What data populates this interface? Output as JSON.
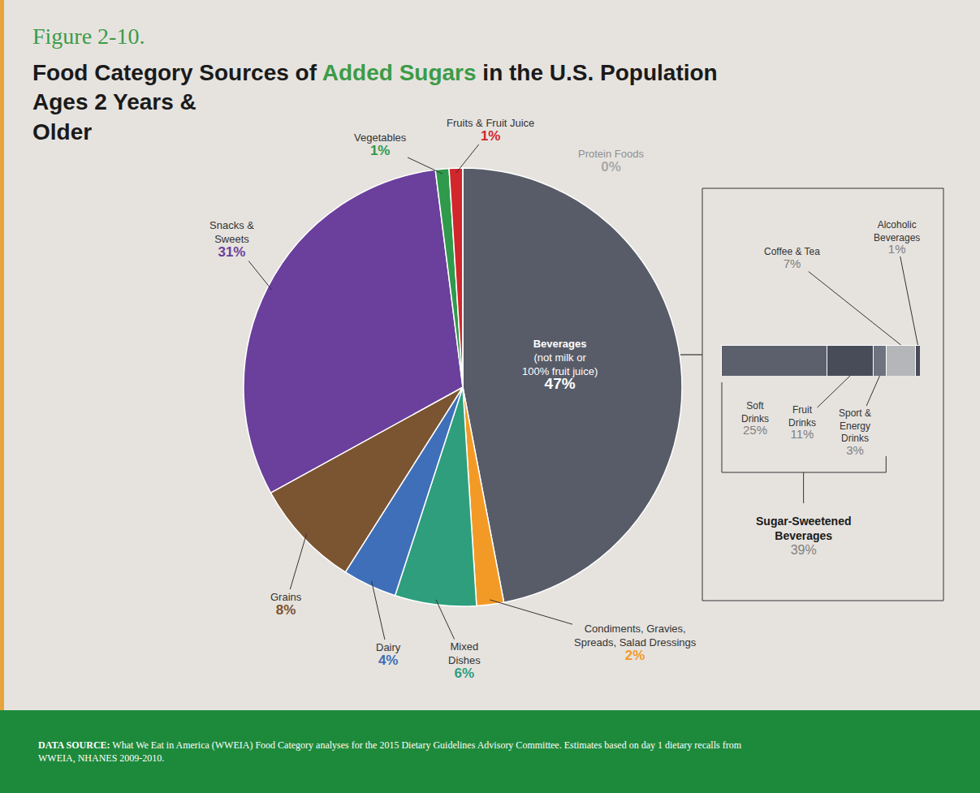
{
  "chart_data": [
    {
      "type": "pie",
      "figure_label": "Figure 2-10.",
      "title": "Food Category Sources of Added Sugars in the U.S. Population Ages 2 Years & Older",
      "title_highlight": "Added Sugars",
      "categories": [
        "Beverages (not milk or 100% fruit juice)",
        "Condiments, Gravies, Spreads, Salad Dressings",
        "Mixed Dishes",
        "Dairy",
        "Grains",
        "Snacks & Sweets",
        "Vegetables",
        "Fruits & Fruit Juice",
        "Protein Foods"
      ],
      "values": [
        47,
        2,
        6,
        4,
        8,
        31,
        1,
        1,
        0
      ],
      "value_labels": [
        "47%",
        "2%",
        "6%",
        "4%",
        "8%",
        "31%",
        "1%",
        "1%",
        "0%"
      ],
      "colors": [
        "#575c68",
        "#f39a26",
        "#2e9e7c",
        "#3f6fb8",
        "#7b5431",
        "#6b3f9c",
        "#2f9a4c",
        "#d1262c",
        "#a9a9a9"
      ],
      "source_label": "DATA SOURCE:",
      "source": "What We Eat in America (WWEIA) Food Category analyses for the 2015 Dietary Guidelines Advisory Committee. Estimates based on day 1 dietary recalls from WWEIA, NHANES 2009-2010."
    },
    {
      "type": "bar",
      "orientation": "horizontal",
      "stacked": true,
      "categories": [
        "Soft Drinks",
        "Fruit Drinks",
        "Sport & Energy Drinks",
        "Coffee & Tea",
        "Alcoholic Beverages"
      ],
      "values": [
        25,
        11,
        3,
        7,
        1
      ],
      "value_labels": [
        "25%",
        "11%",
        "3%",
        "7%",
        "1%"
      ],
      "colors": [
        "#5b606c",
        "#474c58",
        "#6e7380",
        "#b5b6ba",
        "#474c58"
      ],
      "xlim": [
        0,
        47
      ],
      "tick_labels": false,
      "grid": false,
      "group": {
        "name": "Sugar-Sweetened Beverages",
        "value": 39,
        "value_label": "39%",
        "members": [
          "Soft Drinks",
          "Fruit Drinks",
          "Sport & Energy Drinks"
        ]
      }
    }
  ]
}
